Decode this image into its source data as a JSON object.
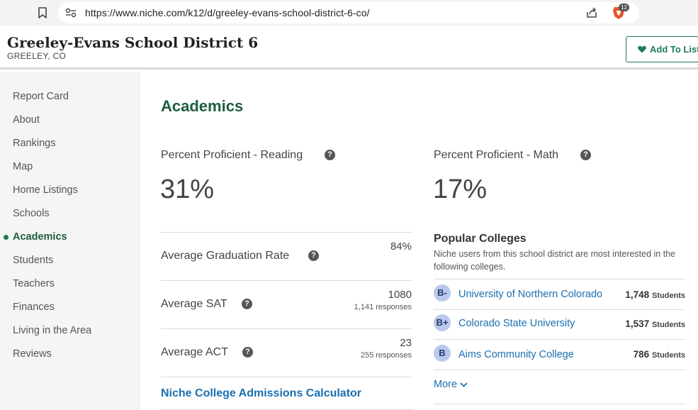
{
  "browser": {
    "url": "https://www.niche.com/k12/d/greeley-evans-school-district-6-co/",
    "brave_count": "12"
  },
  "header": {
    "title": "Greeley-Evans School District 6",
    "location": "GREELEY, CO",
    "add_to_list": "Add To List"
  },
  "sidebar": {
    "items": [
      {
        "label": "Report Card"
      },
      {
        "label": "About"
      },
      {
        "label": "Rankings"
      },
      {
        "label": "Map"
      },
      {
        "label": "Home Listings"
      },
      {
        "label": "Schools"
      },
      {
        "label": "Academics"
      },
      {
        "label": "Students"
      },
      {
        "label": "Teachers"
      },
      {
        "label": "Finances"
      },
      {
        "label": "Living in the Area"
      },
      {
        "label": "Reviews"
      }
    ],
    "active": "Academics"
  },
  "academics": {
    "heading": "Academics",
    "reading": {
      "label": "Percent Proficient - Reading",
      "value": "31%"
    },
    "math": {
      "label": "Percent Proficient - Math",
      "value": "17%"
    },
    "graduation": {
      "label": "Average Graduation Rate",
      "value": "84%"
    },
    "sat": {
      "label": "Average SAT",
      "value": "1080",
      "responses": "1,141 responses"
    },
    "act": {
      "label": "Average ACT",
      "value": "23",
      "responses": "255 responses"
    },
    "calculator_link": "Niche College Admissions Calculator"
  },
  "colleges": {
    "title": "Popular Colleges",
    "description": "Niche users from this school district are most interested in the following colleges.",
    "list": [
      {
        "grade": "B-",
        "name": "University of Northern Colorado",
        "count": "1,748",
        "unit": "Students"
      },
      {
        "grade": "B+",
        "name": "Colorado State University",
        "count": "1,537",
        "unit": "Students"
      },
      {
        "grade": "B",
        "name": "Aims Community College",
        "count": "786",
        "unit": "Students"
      }
    ],
    "more": "More"
  },
  "colors": {
    "accent_green": "#1d5e3f",
    "link_blue": "#1a6fb0",
    "grade_bg": "#b9c9ee"
  }
}
